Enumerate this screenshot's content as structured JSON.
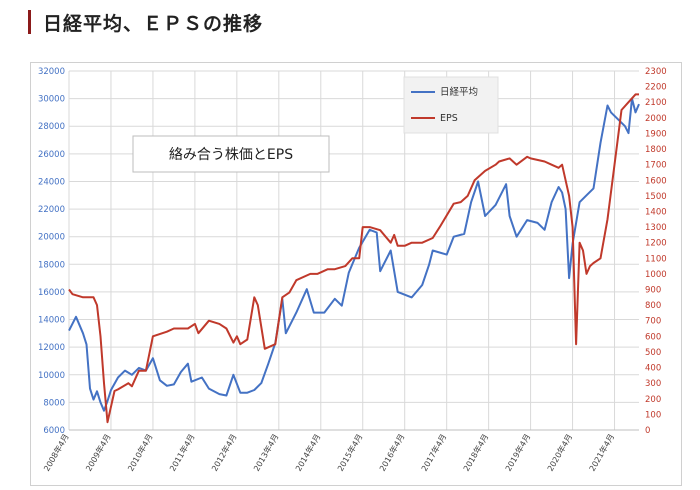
{
  "heading": {
    "title": "日経平均、ＥＰＳの推移"
  },
  "colors": {
    "heading_bar": "#8b1a1a",
    "nikkei": "#4472c4",
    "eps": "#c0392b",
    "grid": "#d9d9d9"
  },
  "chart_data": {
    "type": "line",
    "title": "",
    "annotation": "絡み合う株価とEPS",
    "legend": {
      "position": "top-right",
      "entries": [
        "日経平均",
        "EPS"
      ]
    },
    "grid": true,
    "y_left": {
      "min": 6000,
      "max": 32000,
      "step": 2000,
      "ticks": [
        "6000",
        "8000",
        "10000",
        "12000",
        "14000",
        "16000",
        "18000",
        "20000",
        "22000",
        "24000",
        "26000",
        "28000",
        "30000",
        "32000"
      ]
    },
    "y_right": {
      "min": 0,
      "max": 2300,
      "step": 100,
      "ticks": [
        "0",
        "100",
        "200",
        "300",
        "400",
        "500",
        "600",
        "700",
        "800",
        "900",
        "1000",
        "1100",
        "1200",
        "1300",
        "1400",
        "1500",
        "1600",
        "1700",
        "1800",
        "1900",
        "2000",
        "2100",
        "2200",
        "2300"
      ]
    },
    "x_ticks": [
      "2008年4月",
      "2009年4月",
      "2010年4月",
      "2011年4月",
      "2012年4月",
      "2013年4月",
      "2014年4月",
      "2015年4月",
      "2016年4月",
      "2017年4月",
      "2018年4月",
      "2019年4月",
      "2020年4月",
      "2021年4月"
    ],
    "x_range": [
      "2008-04",
      "2021-11"
    ],
    "series": [
      {
        "name": "日経平均",
        "axis": "left",
        "x": [
          "2008-04",
          "2008-06",
          "2008-08",
          "2008-09",
          "2008-10",
          "2008-11",
          "2008-12",
          "2009-01",
          "2009-02",
          "2009-03",
          "2009-04",
          "2009-06",
          "2009-08",
          "2009-10",
          "2009-12",
          "2010-02",
          "2010-04",
          "2010-06",
          "2010-08",
          "2010-10",
          "2010-12",
          "2011-02",
          "2011-03",
          "2011-06",
          "2011-08",
          "2011-11",
          "2012-01",
          "2012-03",
          "2012-05",
          "2012-07",
          "2012-09",
          "2012-11",
          "2013-01",
          "2013-03",
          "2013-05",
          "2013-06",
          "2013-09",
          "2013-12",
          "2014-02",
          "2014-05",
          "2014-08",
          "2014-10",
          "2014-12",
          "2015-03",
          "2015-06",
          "2015-08",
          "2015-09",
          "2015-12",
          "2016-02",
          "2016-06",
          "2016-09",
          "2016-11",
          "2016-12",
          "2017-04",
          "2017-06",
          "2017-09",
          "2017-11",
          "2018-01",
          "2018-03",
          "2018-06",
          "2018-09",
          "2018-10",
          "2018-12",
          "2019-03",
          "2019-06",
          "2019-08",
          "2019-10",
          "2019-12",
          "2020-01",
          "2020-02",
          "2020-03",
          "2020-04",
          "2020-06",
          "2020-08",
          "2020-10",
          "2020-12",
          "2021-02",
          "2021-03",
          "2021-05",
          "2021-07",
          "2021-08",
          "2021-09",
          "2021-10",
          "2021-11"
        ],
        "values": [
          13200,
          14200,
          13000,
          12200,
          9000,
          8200,
          8800,
          8000,
          7400,
          8100,
          8900,
          9800,
          10300,
          10000,
          10500,
          10300,
          11200,
          9600,
          9200,
          9300,
          10200,
          10800,
          9500,
          9800,
          9000,
          8600,
          8500,
          10000,
          8700,
          8700,
          8900,
          9400,
          10800,
          12300,
          15500,
          13000,
          14500,
          16200,
          14500,
          14500,
          15500,
          15000,
          17400,
          19200,
          20500,
          20300,
          17500,
          19000,
          16000,
          15600,
          16500,
          18000,
          19000,
          18700,
          20000,
          20200,
          22500,
          24000,
          21500,
          22300,
          23800,
          21500,
          20000,
          21200,
          21000,
          20500,
          22500,
          23600,
          23200,
          22000,
          17000,
          19500,
          22500,
          23000,
          23500,
          26800,
          29500,
          29000,
          28500,
          28000,
          27500,
          30000,
          29000,
          29600
        ]
      },
      {
        "name": "EPS",
        "axis": "right",
        "x": [
          "2008-04",
          "2008-05",
          "2008-08",
          "2008-11",
          "2008-12",
          "2009-01",
          "2009-02",
          "2009-03",
          "2009-05",
          "2009-06",
          "2009-09",
          "2009-10",
          "2009-12",
          "2010-02",
          "2010-04",
          "2010-08",
          "2010-10",
          "2011-02",
          "2011-04",
          "2011-05",
          "2011-08",
          "2011-11",
          "2012-01",
          "2012-03",
          "2012-04",
          "2012-05",
          "2012-07",
          "2012-09",
          "2012-10",
          "2012-12",
          "2013-03",
          "2013-05",
          "2013-07",
          "2013-09",
          "2014-01",
          "2014-03",
          "2014-06",
          "2014-08",
          "2014-11",
          "2015-01",
          "2015-03",
          "2015-04",
          "2015-06",
          "2015-09",
          "2015-12",
          "2016-01",
          "2016-02",
          "2016-04",
          "2016-06",
          "2016-09",
          "2016-12",
          "2017-02",
          "2017-06",
          "2017-08",
          "2017-10",
          "2017-12",
          "2018-03",
          "2018-06",
          "2018-07",
          "2018-10",
          "2018-12",
          "2019-03",
          "2019-04",
          "2019-08",
          "2019-10",
          "2019-12",
          "2020-01",
          "2020-02",
          "2020-03",
          "2020-04",
          "2020-05",
          "2020-06",
          "2020-07",
          "2020-08",
          "2020-09",
          "2020-10",
          "2020-12",
          "2021-02",
          "2021-04",
          "2021-06",
          "2021-08",
          "2021-10",
          "2021-11"
        ],
        "values": [
          900,
          870,
          850,
          850,
          800,
          600,
          300,
          50,
          250,
          260,
          300,
          280,
          380,
          380,
          600,
          630,
          650,
          650,
          680,
          620,
          700,
          680,
          650,
          560,
          600,
          550,
          580,
          850,
          800,
          520,
          550,
          850,
          880,
          960,
          1000,
          1000,
          1030,
          1030,
          1050,
          1100,
          1100,
          1300,
          1300,
          1280,
          1200,
          1250,
          1180,
          1180,
          1200,
          1200,
          1230,
          1300,
          1450,
          1460,
          1500,
          1600,
          1660,
          1700,
          1720,
          1740,
          1700,
          1750,
          1740,
          1720,
          1700,
          1680,
          1700,
          1600,
          1500,
          1300,
          550,
          1200,
          1150,
          1000,
          1050,
          1070,
          1100,
          1350,
          1700,
          2050,
          2100,
          2150,
          2150
        ]
      }
    ]
  }
}
